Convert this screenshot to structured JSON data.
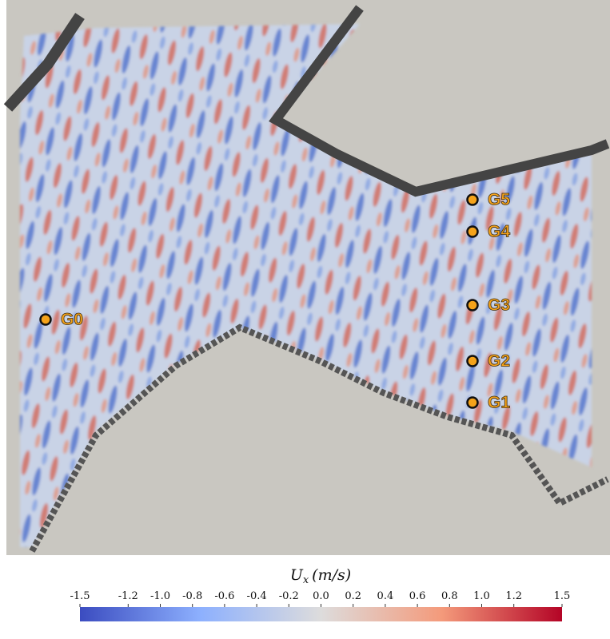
{
  "gauges": [
    {
      "label": "G0"
    },
    {
      "label": "G1"
    },
    {
      "label": "G2"
    },
    {
      "label": "G3"
    },
    {
      "label": "G4"
    },
    {
      "label": "G5"
    }
  ],
  "colorbar": {
    "symbol": "U",
    "subscript": "x",
    "unit": "(m/s)",
    "lim": [
      -1.5,
      1.5
    ],
    "ticks": [
      -1.5,
      -1.2,
      {
        "value": -1.0,
        "label": "-1.0"
      },
      -0.8,
      -0.6,
      -0.4,
      -0.2,
      {
        "value": 0,
        "label": "0.0"
      },
      0.2,
      0.4,
      0.6,
      0.8,
      {
        "value": 1.0,
        "label": "1.0"
      },
      1.2,
      1.5
    ]
  }
}
